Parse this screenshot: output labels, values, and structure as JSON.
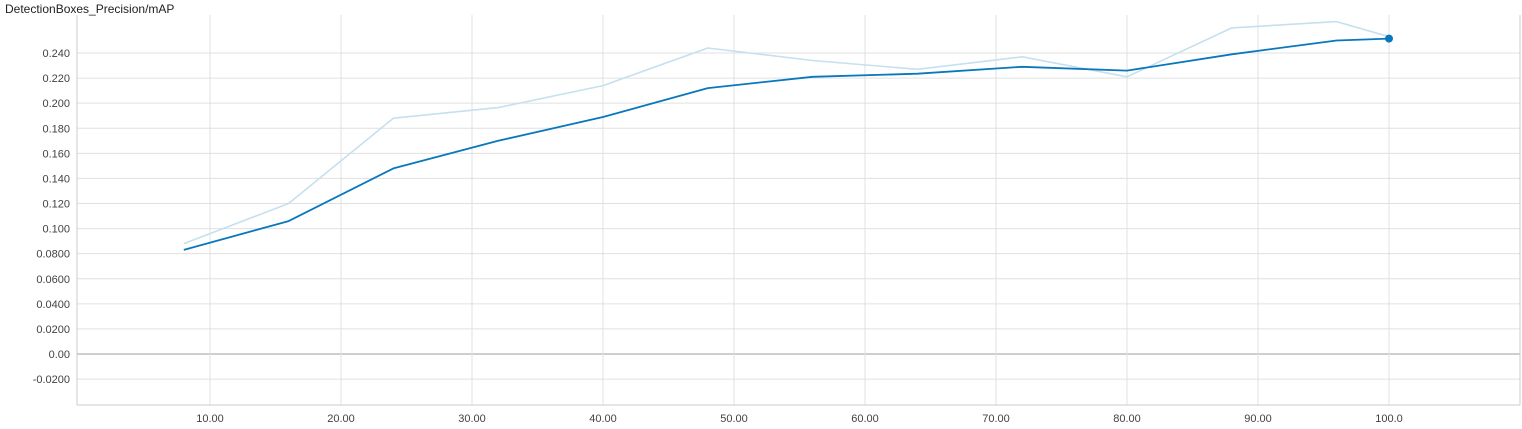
{
  "chart_data": {
    "type": "line",
    "title": "DetectionBoxes_Precision/mAP",
    "xlabel": "",
    "ylabel": "",
    "xlim": [
      0,
      110
    ],
    "ylim": [
      -0.04,
      0.26
    ],
    "grid": true,
    "x_ticks": [
      "10.00",
      "20.00",
      "30.00",
      "40.00",
      "50.00",
      "60.00",
      "70.00",
      "80.00",
      "90.00",
      "100.0"
    ],
    "x_tick_values": [
      10,
      20,
      30,
      40,
      50,
      60,
      70,
      80,
      90,
      100
    ],
    "y_ticks": [
      "-0.0200",
      "0.00",
      "0.0200",
      "0.0400",
      "0.0600",
      "0.0800",
      "0.100",
      "0.120",
      "0.140",
      "0.160",
      "0.180",
      "0.200",
      "0.220",
      "0.240"
    ],
    "y_tick_values": [
      -0.02,
      0,
      0.02,
      0.04,
      0.06,
      0.08,
      0.1,
      0.12,
      0.14,
      0.16,
      0.18,
      0.2,
      0.22,
      0.24
    ],
    "series": [
      {
        "color": "#c6e0ef",
        "x": [
          8,
          16,
          24,
          32,
          40,
          48,
          56,
          64,
          72,
          80,
          88,
          96,
          100
        ],
        "y": [
          0.088,
          0.12,
          0.188,
          0.1965,
          0.214,
          0.244,
          0.234,
          0.227,
          0.237,
          0.221,
          0.26,
          0.265,
          0.253
        ]
      },
      {
        "color": "#0877bd",
        "x": [
          8,
          16,
          24,
          32,
          40,
          48,
          56,
          64,
          72,
          80,
          88,
          96,
          100
        ],
        "y": [
          0.083,
          0.106,
          0.148,
          0.17,
          0.189,
          0.212,
          0.221,
          0.2235,
          0.229,
          0.226,
          0.239,
          0.25,
          0.2515
        ]
      }
    ]
  }
}
